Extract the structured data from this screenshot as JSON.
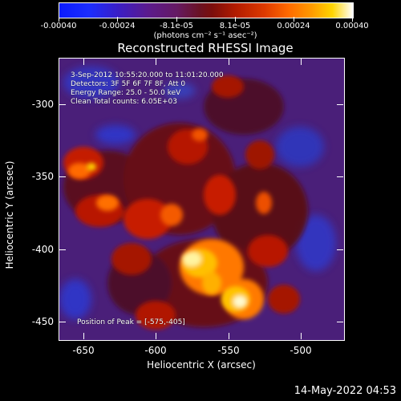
{
  "colorbar": {
    "ticks": [
      "-0.00040",
      "-0.00024",
      "-8.1e-05",
      "8.1e-05",
      "0.00024",
      "0.00040"
    ],
    "units_label": "(photons cm⁻² s⁻¹ asec⁻²)"
  },
  "title": "Reconstructed RHESSI Image",
  "info": {
    "time_range": "3-Sep-2012 10:55:20.000 to 11:01:20.000",
    "detectors": "Detectors: 3F 5F 6F 7F 8F, Att 0",
    "energy": "Energy Range: 25.0 - 50.0 keV",
    "clean": "Clean     Total counts: 6.05E+03",
    "peak": "Position of Peak = [-575,-405]"
  },
  "axes": {
    "ylabel": "Heliocentric Y (arcsec)",
    "xlabel": "Heliocentric X (arcsec)",
    "yticks": [
      "-300",
      "-350",
      "-400",
      "-450"
    ],
    "xticks": [
      "-650",
      "-600",
      "-550",
      "-500"
    ]
  },
  "timestamp": "14-May-2022 04:53",
  "colors": {
    "background": "#000000",
    "image_base": "#4a1f79"
  }
}
